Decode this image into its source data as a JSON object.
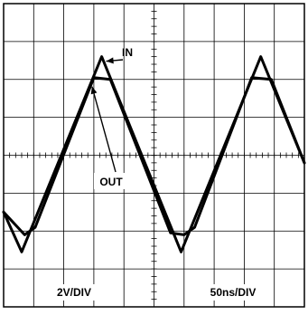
{
  "chart_data": {
    "type": "line",
    "title": "",
    "xlabel": "",
    "ylabel": "",
    "grid": true,
    "divisions": {
      "x": 10,
      "y": 8
    },
    "xlim": [
      0,
      10
    ],
    "ylim": [
      -4,
      4
    ],
    "scale_labels": {
      "vertical": "2V/DIV",
      "horizontal": "50ns/DIV"
    },
    "series": [
      {
        "name": "IN",
        "x": [
          0,
          0.6,
          3.26,
          5.9,
          8.55,
          10
        ],
        "y": [
          -1.5,
          -2.55,
          2.6,
          -2.55,
          2.6,
          -0.2
        ]
      },
      {
        "name": "OUT",
        "x": [
          0,
          0.7,
          1.05,
          3.0,
          3.55,
          5.55,
          6.0,
          6.35,
          8.25,
          8.9,
          10
        ],
        "y": [
          -1.5,
          -2.1,
          -1.9,
          2.05,
          2.0,
          -2.05,
          -2.1,
          -1.9,
          2.05,
          2.0,
          -0.2
        ]
      }
    ],
    "annotations": [
      {
        "label": "IN",
        "target_series": "IN"
      },
      {
        "label": "OUT",
        "target_series": "OUT"
      }
    ]
  }
}
